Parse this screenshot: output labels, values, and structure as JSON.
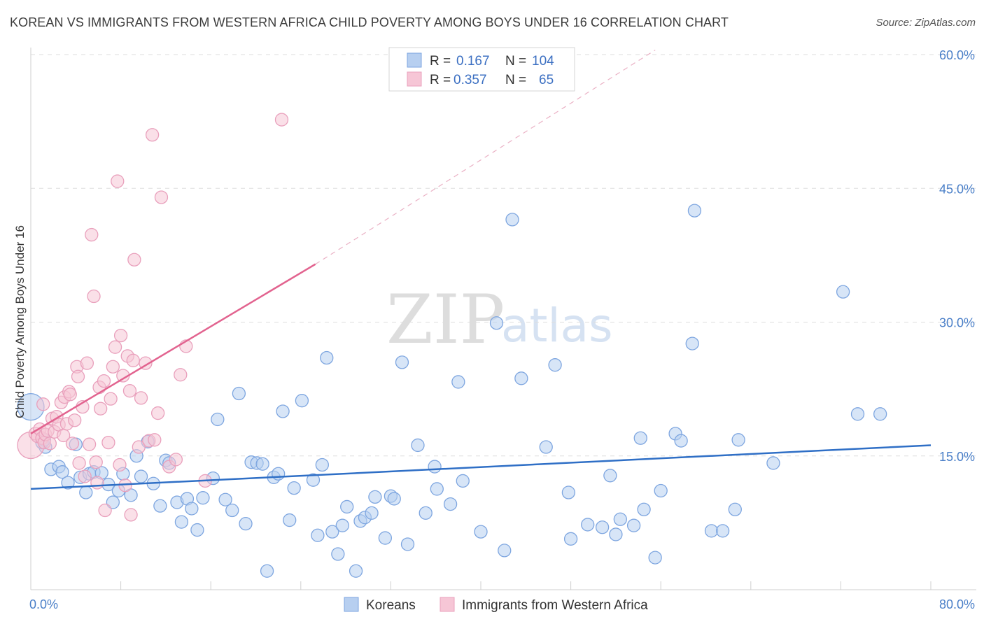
{
  "chart_data": {
    "type": "scatter",
    "title": "KOREAN VS IMMIGRANTS FROM WESTERN AFRICA CHILD POVERTY AMONG BOYS UNDER 16 CORRELATION CHART",
    "source": "Source: ZipAtlas.com",
    "ylabel": "Child Poverty Among Boys Under 16",
    "xlim": [
      0,
      80
    ],
    "ylim": [
      0,
      60
    ],
    "x_tick_labels": [
      "0.0%",
      "80.0%"
    ],
    "y_ticks": [
      15,
      30,
      45,
      60
    ],
    "y_tick_labels": [
      "15.0%",
      "30.0%",
      "45.0%",
      "60.0%"
    ],
    "watermark": {
      "zip": "ZIP",
      "atlas": "atlas"
    },
    "legend": {
      "r_label": "R =",
      "n_label": "N =",
      "entries": [
        {
          "r": "0.167",
          "n": "104"
        },
        {
          "r": "0.357",
          "n": "65"
        }
      ]
    },
    "series": [
      {
        "name": "Koreans",
        "color": "#7ea6e0",
        "fill": "#b7cff0",
        "line_color": "#2f6fc6",
        "trend": {
          "x0": 0,
          "y0": 11.3,
          "x1": 80,
          "y1": 16.2
        },
        "points": [
          [
            0.0,
            20.5
          ],
          [
            1.3,
            16.0
          ],
          [
            1.0,
            16.5
          ],
          [
            1.2,
            16.8
          ],
          [
            1.8,
            13.5
          ],
          [
            2.5,
            13.8
          ],
          [
            2.8,
            13.2
          ],
          [
            3.3,
            12.0
          ],
          [
            4.0,
            16.3
          ],
          [
            4.4,
            12.6
          ],
          [
            4.9,
            10.9
          ],
          [
            5.2,
            13.0
          ],
          [
            5.6,
            13.2
          ],
          [
            6.3,
            13.1
          ],
          [
            6.9,
            11.8
          ],
          [
            7.3,
            9.8
          ],
          [
            7.8,
            11.1
          ],
          [
            8.2,
            13.0
          ],
          [
            8.9,
            10.6
          ],
          [
            9.4,
            15.0
          ],
          [
            9.8,
            12.7
          ],
          [
            10.4,
            16.6
          ],
          [
            10.9,
            11.9
          ],
          [
            11.5,
            9.4
          ],
          [
            12.0,
            14.5
          ],
          [
            12.3,
            14.2
          ],
          [
            13.0,
            9.8
          ],
          [
            13.4,
            7.6
          ],
          [
            13.9,
            10.2
          ],
          [
            14.3,
            9.1
          ],
          [
            14.8,
            6.7
          ],
          [
            15.3,
            10.3
          ],
          [
            16.2,
            12.5
          ],
          [
            16.6,
            19.1
          ],
          [
            17.3,
            10.1
          ],
          [
            17.9,
            8.9
          ],
          [
            18.5,
            22.0
          ],
          [
            19.1,
            7.4
          ],
          [
            19.6,
            14.3
          ],
          [
            20.1,
            14.2
          ],
          [
            20.6,
            14.1
          ],
          [
            21.0,
            2.1
          ],
          [
            21.6,
            12.6
          ],
          [
            22.0,
            13.0
          ],
          [
            22.4,
            20.0
          ],
          [
            23.0,
            7.8
          ],
          [
            23.4,
            11.4
          ],
          [
            24.1,
            21.2
          ],
          [
            25.1,
            12.3
          ],
          [
            25.5,
            6.1
          ],
          [
            25.9,
            14.0
          ],
          [
            26.3,
            26.0
          ],
          [
            26.8,
            6.5
          ],
          [
            27.3,
            4.0
          ],
          [
            27.7,
            7.2
          ],
          [
            28.1,
            9.3
          ],
          [
            28.9,
            2.1
          ],
          [
            29.3,
            7.7
          ],
          [
            29.7,
            8.1
          ],
          [
            30.3,
            8.6
          ],
          [
            30.6,
            10.4
          ],
          [
            31.5,
            5.8
          ],
          [
            32.0,
            10.5
          ],
          [
            32.3,
            10.2
          ],
          [
            33.0,
            25.5
          ],
          [
            33.5,
            5.1
          ],
          [
            34.4,
            16.2
          ],
          [
            35.1,
            8.6
          ],
          [
            35.9,
            13.8
          ],
          [
            36.1,
            11.3
          ],
          [
            37.3,
            9.6
          ],
          [
            38.0,
            23.3
          ],
          [
            38.4,
            12.2
          ],
          [
            40.0,
            6.5
          ],
          [
            41.4,
            29.9
          ],
          [
            42.1,
            4.4
          ],
          [
            42.8,
            41.5
          ],
          [
            43.6,
            23.7
          ],
          [
            45.8,
            16.0
          ],
          [
            46.6,
            25.2
          ],
          [
            47.8,
            10.9
          ],
          [
            48.0,
            5.7
          ],
          [
            49.5,
            7.3
          ],
          [
            50.8,
            7.0
          ],
          [
            51.5,
            12.8
          ],
          [
            52.0,
            6.2
          ],
          [
            52.4,
            7.9
          ],
          [
            53.6,
            7.2
          ],
          [
            54.2,
            17.0
          ],
          [
            54.5,
            9.0
          ],
          [
            55.5,
            3.6
          ],
          [
            56.0,
            11.1
          ],
          [
            57.3,
            17.5
          ],
          [
            57.8,
            16.7
          ],
          [
            58.8,
            27.6
          ],
          [
            59.0,
            42.5
          ],
          [
            60.5,
            6.6
          ],
          [
            61.5,
            6.6
          ],
          [
            62.6,
            9.0
          ],
          [
            62.9,
            16.8
          ],
          [
            66.0,
            14.2
          ],
          [
            72.2,
            33.4
          ],
          [
            73.5,
            19.7
          ],
          [
            75.5,
            19.7
          ]
        ]
      },
      {
        "name": "Immigrants from Western Africa",
        "color": "#e9a0bc",
        "fill": "#f6c6d6",
        "line_color": "#e2638f",
        "trend": {
          "x0": 0,
          "y0": 17.5,
          "x1": 25.3,
          "y1": 36.5
        },
        "trend_dashed": {
          "x0": 25.3,
          "y0": 36.5,
          "x1": 55.5,
          "y1": 60.5
        },
        "points": [
          [
            0.0,
            16.2
          ],
          [
            0.4,
            17.5
          ],
          [
            0.6,
            17.2
          ],
          [
            0.8,
            18.0
          ],
          [
            1.0,
            17.0
          ],
          [
            1.1,
            20.8
          ],
          [
            1.2,
            16.5
          ],
          [
            1.3,
            17.4
          ],
          [
            1.5,
            17.8
          ],
          [
            1.7,
            16.4
          ],
          [
            1.9,
            19.2
          ],
          [
            2.1,
            17.7
          ],
          [
            2.3,
            19.4
          ],
          [
            2.5,
            18.5
          ],
          [
            2.7,
            21.0
          ],
          [
            2.9,
            17.3
          ],
          [
            3.0,
            21.6
          ],
          [
            3.2,
            18.6
          ],
          [
            3.4,
            22.2
          ],
          [
            3.5,
            21.9
          ],
          [
            3.7,
            16.4
          ],
          [
            3.9,
            19.0
          ],
          [
            4.1,
            25.0
          ],
          [
            4.2,
            23.9
          ],
          [
            4.3,
            14.2
          ],
          [
            4.6,
            20.5
          ],
          [
            4.8,
            12.7
          ],
          [
            5.0,
            25.4
          ],
          [
            5.2,
            16.3
          ],
          [
            5.4,
            39.8
          ],
          [
            5.6,
            32.9
          ],
          [
            5.8,
            14.3
          ],
          [
            5.9,
            12.0
          ],
          [
            6.1,
            22.7
          ],
          [
            6.2,
            20.3
          ],
          [
            6.5,
            23.4
          ],
          [
            6.6,
            8.9
          ],
          [
            6.9,
            16.5
          ],
          [
            7.1,
            21.4
          ],
          [
            7.3,
            25.0
          ],
          [
            7.5,
            27.2
          ],
          [
            7.7,
            45.8
          ],
          [
            7.9,
            14.0
          ],
          [
            8.0,
            28.5
          ],
          [
            8.2,
            24.0
          ],
          [
            8.4,
            11.7
          ],
          [
            8.6,
            26.2
          ],
          [
            8.8,
            22.3
          ],
          [
            8.9,
            8.4
          ],
          [
            9.1,
            25.7
          ],
          [
            9.2,
            37.0
          ],
          [
            9.6,
            16.0
          ],
          [
            9.8,
            21.5
          ],
          [
            10.2,
            25.4
          ],
          [
            10.5,
            16.7
          ],
          [
            10.8,
            51.0
          ],
          [
            11.0,
            16.8
          ],
          [
            11.3,
            19.8
          ],
          [
            11.6,
            44.0
          ],
          [
            12.3,
            13.8
          ],
          [
            12.9,
            14.6
          ],
          [
            13.3,
            24.1
          ],
          [
            13.8,
            27.3
          ],
          [
            15.5,
            12.2
          ],
          [
            22.3,
            52.7
          ]
        ]
      }
    ]
  }
}
